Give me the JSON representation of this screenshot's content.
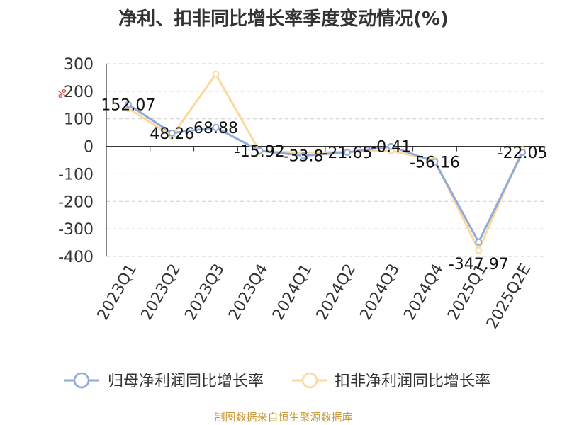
{
  "title": "净利、扣非同比增长率季度变动情况(%)",
  "source": "制图数据来自恒生聚源数据库",
  "chart_data": {
    "type": "line",
    "title": "净利、扣非同比增长率季度变动情况(%)",
    "ylabel": "%",
    "ylim": [
      -400,
      300
    ],
    "yticks": [
      300,
      200,
      100,
      0,
      -100,
      -200,
      -300,
      -400
    ],
    "grid": true,
    "legend_position": "bottom",
    "categories": [
      "2023Q1",
      "2023Q2",
      "2023Q3",
      "2023Q4",
      "2024Q1",
      "2024Q2",
      "2024Q3",
      "2024Q4",
      "2025Q1",
      "2025Q2E"
    ],
    "series": [
      {
        "name": "归母净利润同比增长率",
        "color": "#8fa9d8",
        "values": [
          152.07,
          48.26,
          68.88,
          -15.92,
          -33.8,
          -21.65,
          -0.41,
          -56.16,
          -347.97,
          -22.05
        ],
        "labels": [
          "152.07",
          "48.26",
          "68.88",
          "-15.92",
          "-33.8",
          "-21.65",
          "-0.41",
          "-56.16",
          "-347.97",
          "-22.05"
        ]
      },
      {
        "name": "扣非净利润同比增长率",
        "color": "#fcd89a",
        "values": [
          138,
          38,
          262,
          -18,
          -23,
          -20,
          -16,
          -50,
          -378,
          -12
        ]
      }
    ]
  }
}
